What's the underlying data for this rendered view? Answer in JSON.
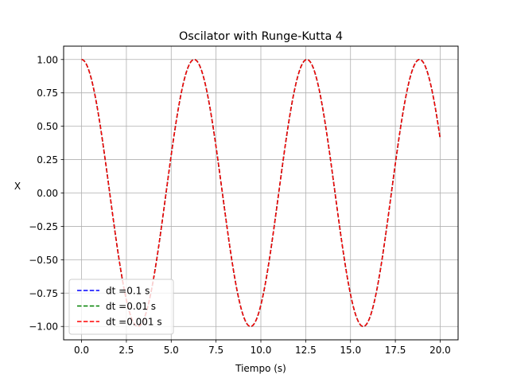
{
  "chart_data": {
    "type": "line",
    "title": "Oscilator with Runge-Kutta 4",
    "xlabel": "Tiempo (s)",
    "ylabel": "X",
    "xlim": [
      -1.0,
      21.0
    ],
    "ylim": [
      -1.1,
      1.1
    ],
    "xticks": [
      0.0,
      2.5,
      5.0,
      7.5,
      10.0,
      12.5,
      15.0,
      17.5,
      20.0
    ],
    "xtick_labels": [
      "0.0",
      "2.5",
      "5.0",
      "7.5",
      "10.0",
      "12.5",
      "15.0",
      "17.5",
      "20.0"
    ],
    "yticks": [
      1.0,
      0.75,
      0.5,
      0.25,
      0.0,
      -0.25,
      -0.5,
      -0.75,
      -1.0
    ],
    "ytick_labels": [
      "1.00",
      "0.75",
      "0.50",
      "0.25",
      "0.00",
      "−0.25",
      "−0.50",
      "−0.75",
      "−1.00"
    ],
    "grid": true,
    "legend_position": "lower-left",
    "function": "x(t) = cos(t)",
    "x_range": [
      0,
      20
    ],
    "series": [
      {
        "name": "dt =0.1 s",
        "color": "#0000ff",
        "dt": 0.1
      },
      {
        "name": "dt =0.01 s",
        "color": "#008000",
        "dt": 0.01
      },
      {
        "name": "dt =0.001 s",
        "color": "#ff0000",
        "dt": 0.001
      }
    ]
  }
}
